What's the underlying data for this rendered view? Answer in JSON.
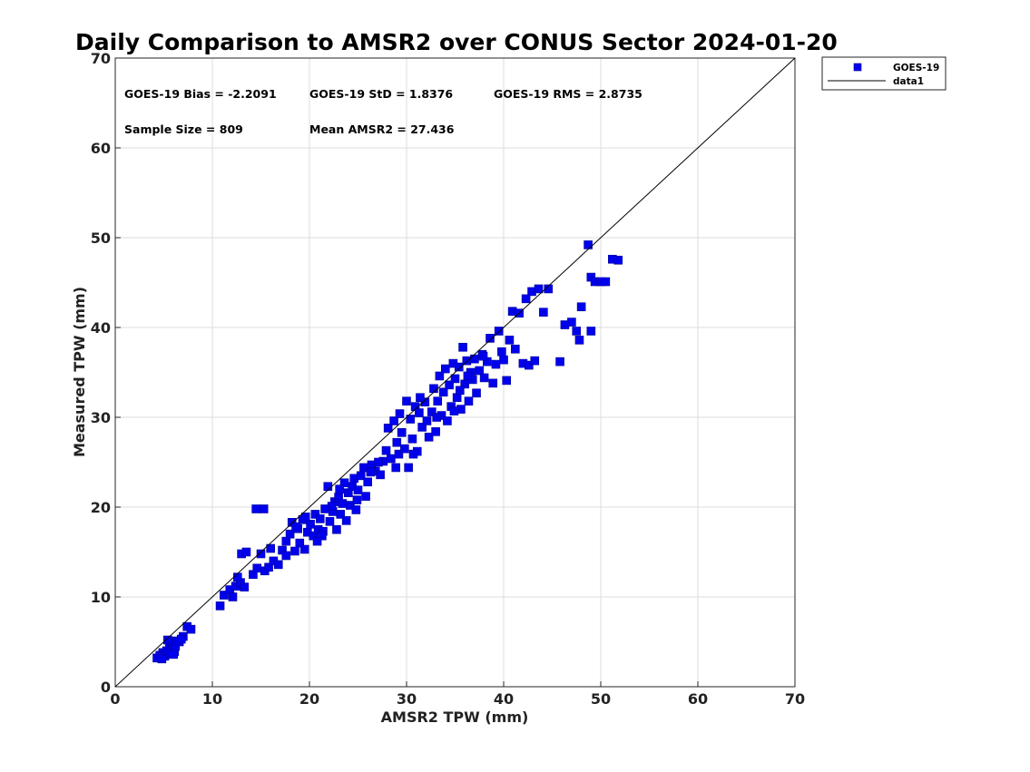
{
  "chart_data": {
    "type": "scatter",
    "title": "Daily Comparison to AMSR2 over CONUS Sector 2024-01-20",
    "xlabel": "AMSR2 TPW (mm)",
    "ylabel": "Measured TPW (mm)",
    "xlim": [
      0,
      70
    ],
    "ylim": [
      0,
      70
    ],
    "xticks": [
      "0",
      "10",
      "20",
      "30",
      "40",
      "50",
      "60",
      "70"
    ],
    "yticks": [
      "0",
      "10",
      "20",
      "30",
      "40",
      "50",
      "60",
      "70"
    ],
    "grid": true,
    "legend_position": "outside-top-right",
    "stats": [
      "GOES-19 Bias = -2.2091",
      "GOES-19 StD = 1.8376",
      "GOES-19 RMS = 2.8735",
      "Sample Size = 809",
      "Mean AMSR2 = 27.436"
    ],
    "series": [
      {
        "name": "GOES-19",
        "marker": "square",
        "color": "#0000ee",
        "points": [
          [
            4.3,
            3.2
          ],
          [
            4.6,
            3.5
          ],
          [
            4.9,
            3.8
          ],
          [
            5.1,
            3.4
          ],
          [
            5.3,
            4.0
          ],
          [
            5.5,
            3.7
          ],
          [
            5.6,
            4.4
          ],
          [
            5.8,
            4.1
          ],
          [
            5.9,
            4.8
          ],
          [
            6.1,
            3.9
          ],
          [
            6.2,
            4.5
          ],
          [
            6.3,
            5.1
          ],
          [
            6.6,
            5.0
          ],
          [
            7.0,
            5.6
          ],
          [
            7.4,
            6.7
          ],
          [
            7.8,
            6.4
          ],
          [
            5.4,
            5.2
          ],
          [
            4.8,
            3.1
          ],
          [
            6.0,
            3.6
          ],
          [
            6.8,
            5.3
          ],
          [
            10.8,
            9.0
          ],
          [
            11.2,
            10.2
          ],
          [
            11.8,
            10.8
          ],
          [
            12.1,
            10.0
          ],
          [
            12.4,
            11.2
          ],
          [
            12.9,
            11.6
          ],
          [
            13.3,
            11.1
          ],
          [
            12.6,
            12.2
          ],
          [
            13.0,
            14.8
          ],
          [
            13.5,
            15.0
          ],
          [
            14.2,
            12.5
          ],
          [
            14.6,
            13.2
          ],
          [
            15.0,
            14.8
          ],
          [
            15.4,
            12.9
          ],
          [
            15.8,
            13.3
          ],
          [
            16.3,
            14.0
          ],
          [
            16.8,
            13.6
          ],
          [
            17.2,
            15.2
          ],
          [
            17.6,
            14.6
          ],
          [
            14.5,
            19.8
          ],
          [
            15.3,
            19.8
          ],
          [
            17.6,
            16.2
          ],
          [
            18.0,
            17.0
          ],
          [
            18.2,
            18.3
          ],
          [
            18.5,
            15.1
          ],
          [
            18.8,
            17.6
          ],
          [
            19.0,
            16.0
          ],
          [
            19.3,
            18.6
          ],
          [
            19.5,
            15.3
          ],
          [
            19.8,
            17.2
          ],
          [
            20.1,
            18.1
          ],
          [
            20.4,
            16.8
          ],
          [
            20.6,
            19.2
          ],
          [
            20.9,
            17.5
          ],
          [
            21.1,
            18.7
          ],
          [
            21.4,
            17.3
          ],
          [
            21.6,
            19.8
          ],
          [
            21.9,
            22.3
          ],
          [
            22.1,
            18.4
          ],
          [
            22.4,
            19.5
          ],
          [
            22.6,
            20.6
          ],
          [
            22.8,
            17.5
          ],
          [
            23.0,
            21.1
          ],
          [
            23.2,
            19.2
          ],
          [
            23.4,
            20.4
          ],
          [
            23.6,
            22.7
          ],
          [
            23.8,
            18.5
          ],
          [
            24.0,
            21.6
          ],
          [
            24.2,
            20.2
          ],
          [
            24.4,
            22.3
          ],
          [
            24.6,
            23.2
          ],
          [
            24.8,
            19.7
          ],
          [
            25.0,
            21.9
          ],
          [
            25.3,
            23.5
          ],
          [
            25.6,
            24.4
          ],
          [
            26.0,
            22.8
          ],
          [
            26.4,
            24.7
          ],
          [
            26.8,
            24.0
          ],
          [
            27.3,
            23.6
          ],
          [
            27.6,
            25.1
          ],
          [
            27.9,
            26.3
          ],
          [
            28.1,
            28.8
          ],
          [
            28.4,
            25.4
          ],
          [
            28.7,
            29.6
          ],
          [
            29.0,
            27.2
          ],
          [
            29.2,
            25.9
          ],
          [
            29.5,
            28.3
          ],
          [
            29.8,
            26.5
          ],
          [
            30.0,
            31.8
          ],
          [
            30.2,
            24.4
          ],
          [
            30.4,
            29.8
          ],
          [
            30.6,
            27.6
          ],
          [
            30.9,
            31.2
          ],
          [
            31.1,
            26.2
          ],
          [
            31.3,
            30.5
          ],
          [
            31.6,
            28.9
          ],
          [
            31.9,
            31.7
          ],
          [
            32.1,
            29.6
          ],
          [
            32.3,
            27.8
          ],
          [
            32.6,
            30.6
          ],
          [
            32.8,
            33.2
          ],
          [
            33.0,
            28.4
          ],
          [
            33.2,
            31.8
          ],
          [
            33.4,
            34.6
          ],
          [
            33.6,
            30.2
          ],
          [
            33.8,
            32.8
          ],
          [
            34.0,
            35.4
          ],
          [
            34.2,
            29.6
          ],
          [
            34.4,
            33.6
          ],
          [
            34.6,
            31.2
          ],
          [
            34.8,
            36.0
          ],
          [
            35.0,
            34.3
          ],
          [
            35.2,
            32.2
          ],
          [
            35.4,
            35.6
          ],
          [
            35.6,
            30.9
          ],
          [
            35.8,
            37.8
          ],
          [
            36.0,
            33.7
          ],
          [
            36.2,
            36.3
          ],
          [
            36.4,
            31.8
          ],
          [
            36.6,
            35.0
          ],
          [
            36.8,
            34.2
          ],
          [
            37.0,
            36.5
          ],
          [
            37.2,
            32.7
          ],
          [
            37.5,
            35.2
          ],
          [
            37.8,
            37.0
          ],
          [
            38.0,
            34.4
          ],
          [
            38.3,
            36.2
          ],
          [
            38.6,
            38.8
          ],
          [
            38.9,
            33.8
          ],
          [
            39.2,
            35.9
          ],
          [
            39.5,
            39.6
          ],
          [
            39.8,
            37.3
          ],
          [
            40.0,
            36.4
          ],
          [
            40.3,
            34.1
          ],
          [
            40.6,
            38.6
          ],
          [
            40.9,
            41.8
          ],
          [
            41.2,
            37.6
          ],
          [
            41.6,
            41.6
          ],
          [
            42.0,
            36.0
          ],
          [
            42.3,
            43.2
          ],
          [
            42.6,
            35.8
          ],
          [
            42.9,
            44.0
          ],
          [
            43.2,
            36.3
          ],
          [
            43.6,
            44.3
          ],
          [
            44.1,
            41.7
          ],
          [
            44.6,
            44.3
          ],
          [
            45.8,
            36.2
          ],
          [
            46.3,
            40.3
          ],
          [
            47.0,
            40.6
          ],
          [
            47.5,
            39.6
          ],
          [
            47.8,
            38.6
          ],
          [
            48.0,
            42.3
          ],
          [
            48.7,
            49.2
          ],
          [
            49.0,
            45.6
          ],
          [
            49.0,
            39.6
          ],
          [
            49.4,
            45.1
          ],
          [
            50.0,
            45.1
          ],
          [
            50.5,
            45.1
          ],
          [
            51.2,
            47.6
          ],
          [
            51.8,
            47.5
          ],
          [
            22.3,
            20.1
          ],
          [
            23.1,
            22.0
          ],
          [
            24.9,
            20.8
          ],
          [
            21.3,
            16.8
          ],
          [
            19.6,
            18.9
          ],
          [
            26.3,
            23.9
          ],
          [
            29.3,
            30.4
          ],
          [
            31.4,
            32.2
          ],
          [
            34.9,
            30.7
          ],
          [
            37.9,
            36.8
          ],
          [
            33.1,
            30.0
          ],
          [
            35.5,
            33.0
          ],
          [
            36.3,
            34.6
          ],
          [
            30.7,
            25.9
          ],
          [
            28.9,
            24.4
          ],
          [
            25.8,
            21.2
          ],
          [
            20.8,
            16.2
          ],
          [
            18.6,
            17.8
          ],
          [
            16.0,
            15.4
          ],
          [
            27.1,
            25.0
          ]
        ]
      },
      {
        "name": "data1",
        "type": "line",
        "color": "#000000",
        "x": [
          0,
          70
        ],
        "y": [
          0,
          70
        ]
      }
    ]
  }
}
